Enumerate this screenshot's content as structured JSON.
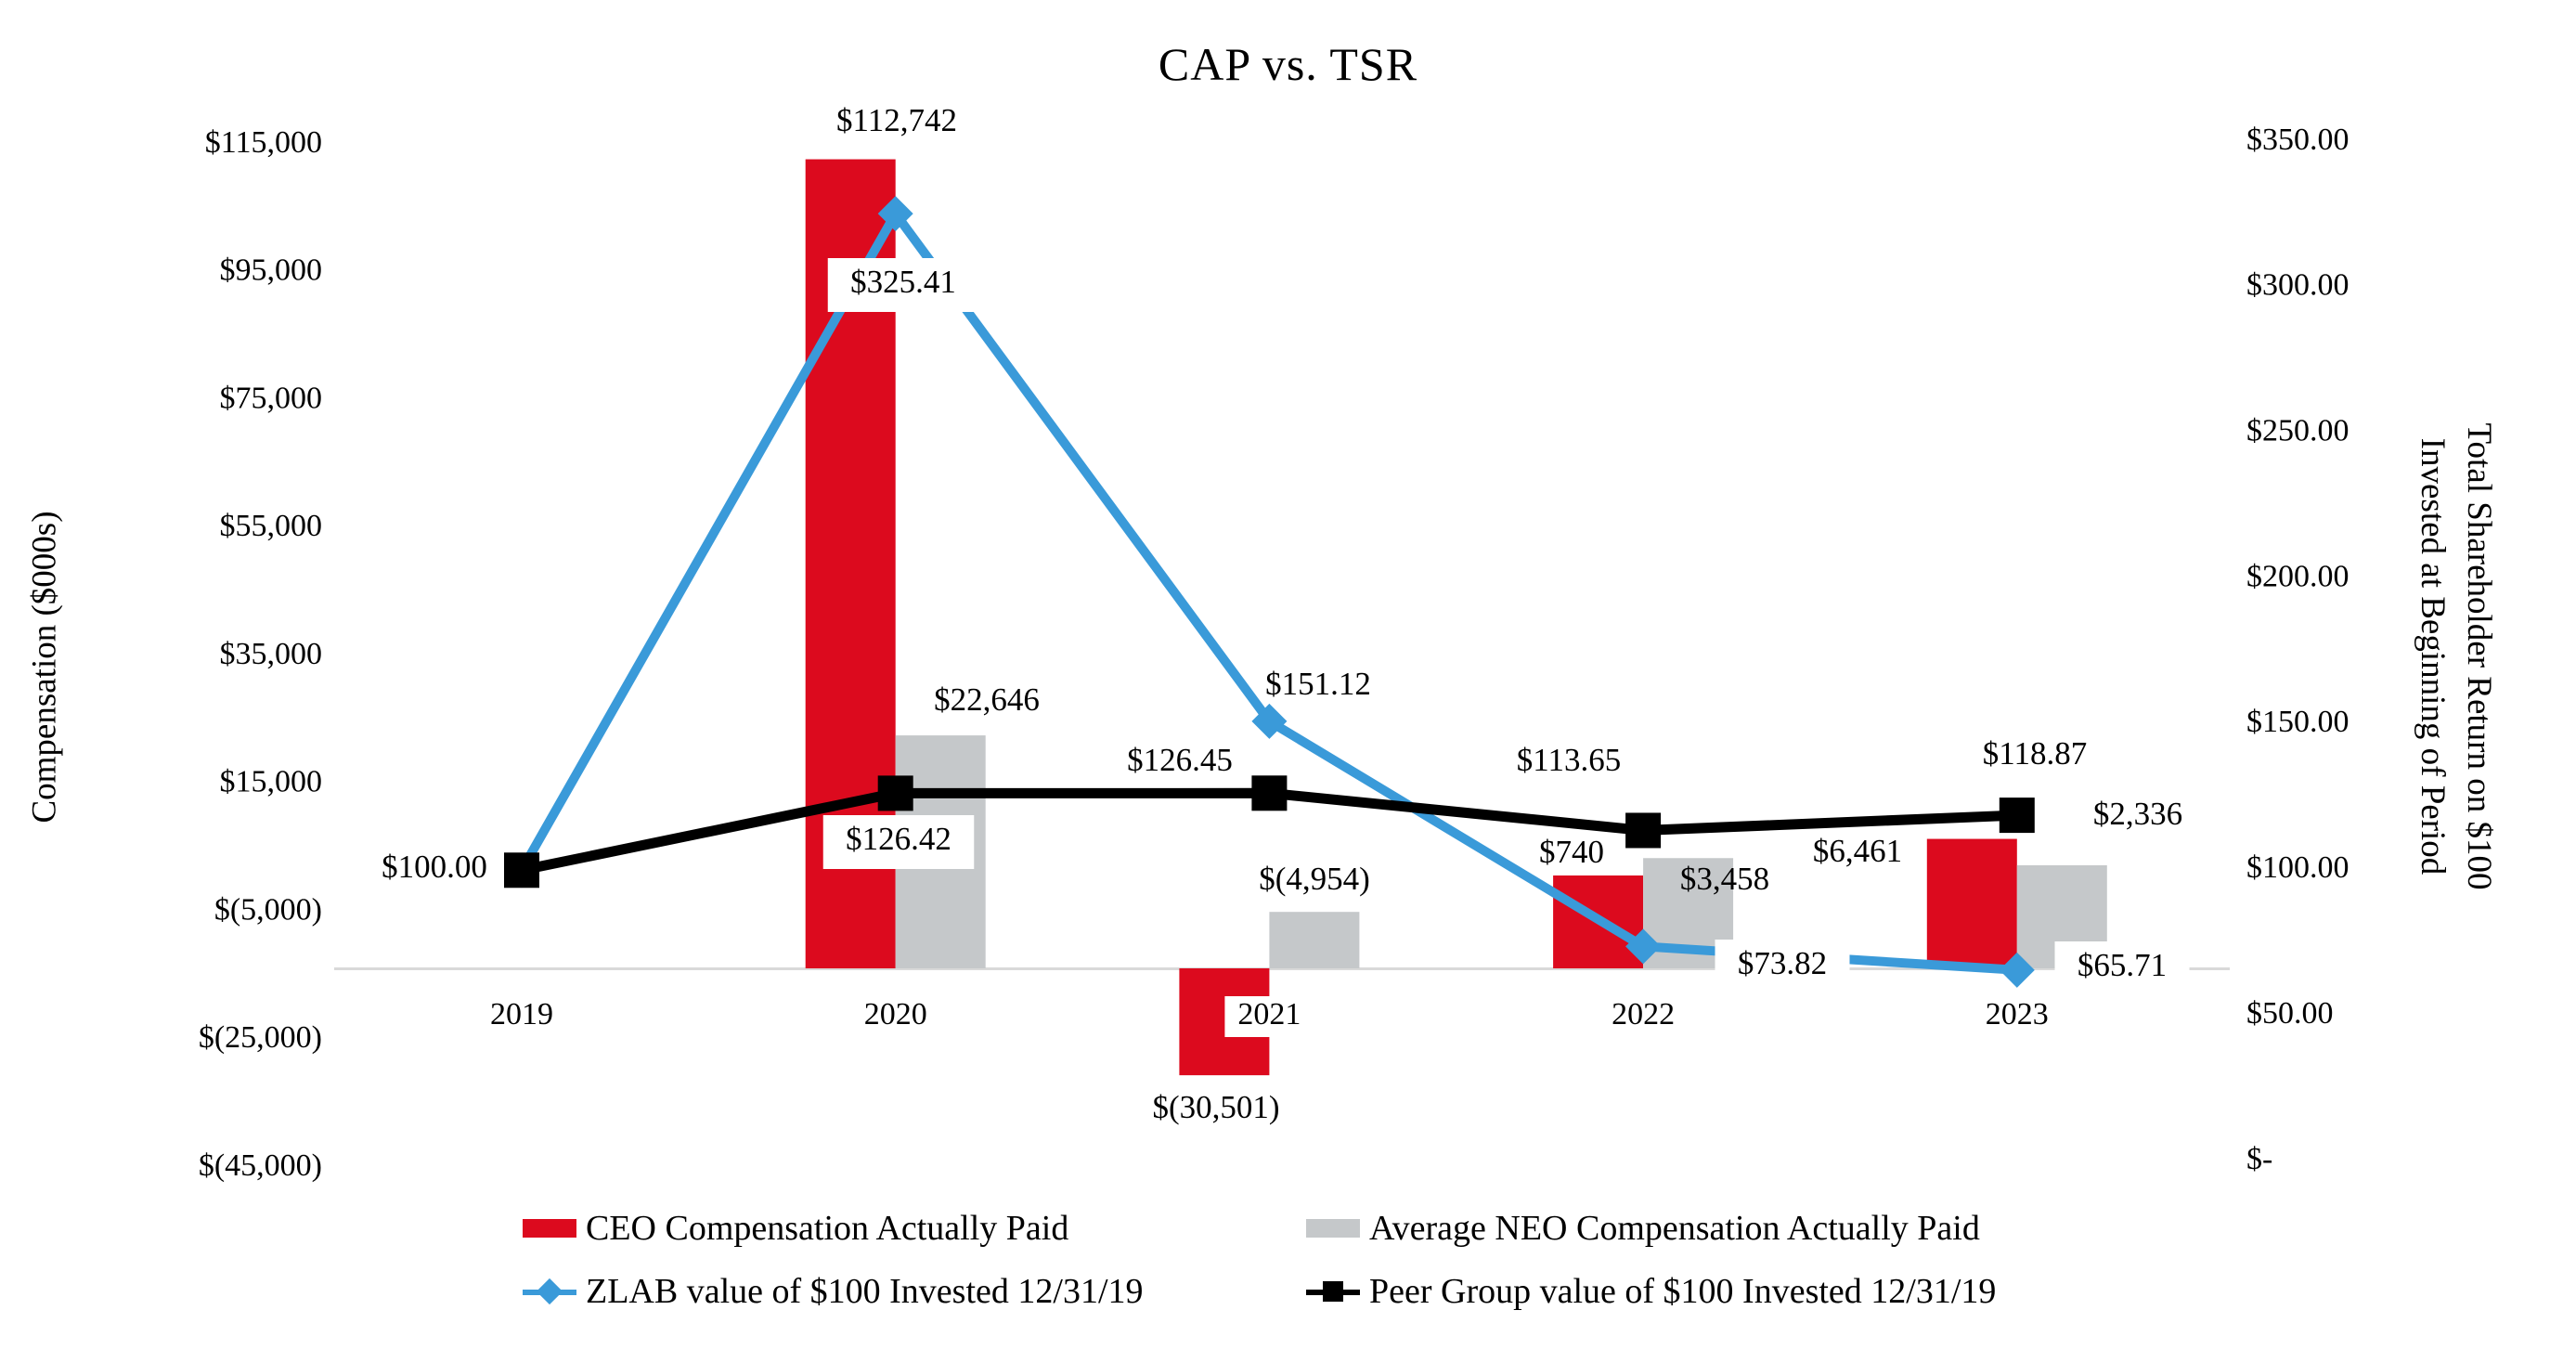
{
  "title": "CAP vs. TSR",
  "colors": {
    "ceo_bar": "#DC0A1E",
    "neo_bar": "#C5C8CA",
    "zlab_line": "#3A9AD9",
    "peer_line": "#000000",
    "axis_line": "#D9D9D9",
    "label_box_fill": "#FFFFFF",
    "text": "#000000"
  },
  "left_axis": {
    "title": "Compensation ($000s)",
    "ticks": [
      "$115,000",
      "$95,000",
      "$75,000",
      "$55,000",
      "$35,000",
      "$15,000",
      "$(5,000)",
      "$(25,000)",
      "$(45,000)"
    ],
    "max": 115000,
    "min": -45000,
    "step": 20000
  },
  "right_axis": {
    "title": "Total Shareholder Return on $100 Invested at Beginning of Period",
    "ticks": [
      "$350.00",
      "$300.00",
      "$250.00",
      "$200.00",
      "$150.00",
      "$100.00",
      "$50.00",
      "$-"
    ],
    "max": 350,
    "min": 0,
    "step": 50
  },
  "chart_data": {
    "type": "bar+line combo, dual axis",
    "categories": [
      "2019",
      "2020",
      "2021",
      "2022",
      "2023"
    ],
    "grid": "off",
    "legend_position": "bottom, two rows",
    "series": [
      {
        "name": "CEO Compensation Actually Paid",
        "type": "bar",
        "axis": "left",
        "values": [
          null,
          112742,
          -30501,
          740,
          6461
        ],
        "labels": [
          "",
          "$112,742",
          "$(30,501)",
          "$740",
          "$6,461"
        ]
      },
      {
        "name": "Average NEO Compensation Actually Paid",
        "type": "bar",
        "axis": "left",
        "values": [
          null,
          22646,
          -4954,
          3458,
          2336
        ],
        "labels": [
          "",
          "$22,646",
          "$(4,954)",
          "$3,458",
          "$2,336"
        ]
      },
      {
        "name": "ZLAB value of $100 Invested 12/31/19",
        "type": "line",
        "marker": "diamond",
        "axis": "right",
        "values": [
          100,
          325.41,
          151.12,
          73.82,
          65.71
        ],
        "labels": [
          "",
          "$325.41",
          "$151.12",
          "$73.82",
          "$65.71"
        ]
      },
      {
        "name": "Peer Group value of $100 Invested 12/31/19",
        "type": "line",
        "marker": "square",
        "axis": "right",
        "values": [
          100,
          126.42,
          126.45,
          113.65,
          118.87
        ],
        "labels": [
          "$100.00",
          "$126.42",
          "$126.45",
          "$113.65",
          "$118.87"
        ]
      }
    ]
  }
}
